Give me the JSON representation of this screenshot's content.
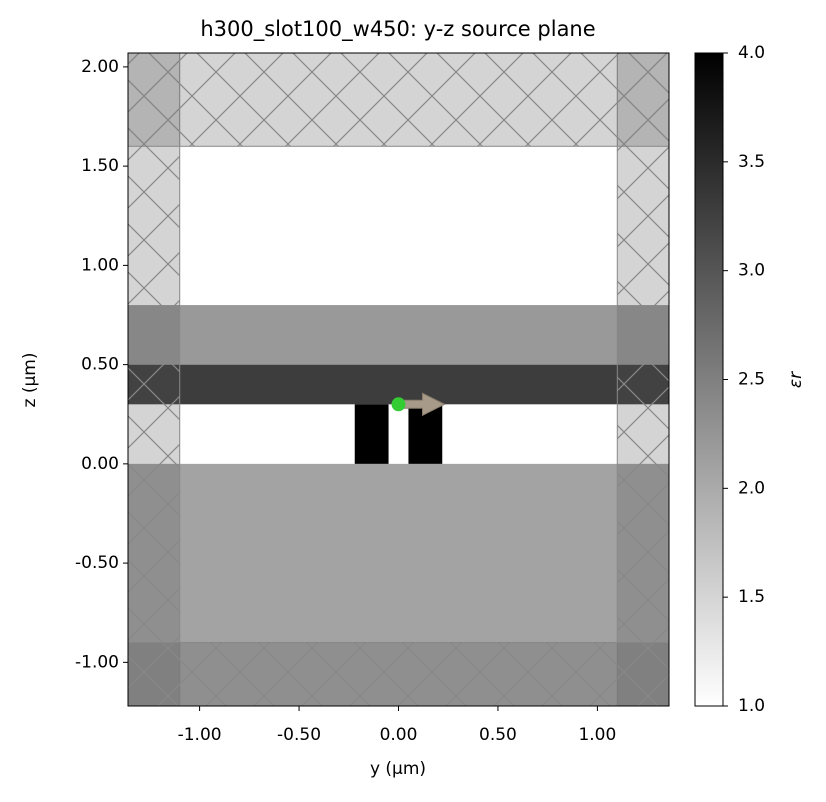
{
  "chart_data": {
    "type": "structure",
    "title": "h300_slot100_w450: y-z source plane",
    "x_label": "y (µm)",
    "y_label": "z (µm)",
    "xlim": [
      -1.36,
      1.36
    ],
    "ylim": [
      -1.22,
      2.07
    ],
    "xticks": [
      {
        "value": -1,
        "label": "-1.00"
      },
      {
        "value": -0.5,
        "label": "-0.50"
      },
      {
        "value": 0,
        "label": "0.00"
      },
      {
        "value": 0.5,
        "label": "0.50"
      },
      {
        "value": 1,
        "label": "1.00"
      }
    ],
    "yticks": [
      {
        "value": -1,
        "label": "-1.00"
      },
      {
        "value": -0.5,
        "label": "-0.50"
      },
      {
        "value": 0,
        "label": "0.00"
      },
      {
        "value": 0.5,
        "label": "0.50"
      },
      {
        "value": 1,
        "label": "1.00"
      },
      {
        "value": 1.5,
        "label": "1.50"
      },
      {
        "value": 2,
        "label": "2.00"
      }
    ],
    "background_eps": 1,
    "regions": [
      {
        "y": [
          -1.36,
          1.36
        ],
        "z": [
          -1.22,
          0
        ],
        "eps": 2.08
      },
      {
        "y": [
          -1.36,
          1.36
        ],
        "z": [
          0.3,
          0.5
        ],
        "eps": 3.28
      },
      {
        "y": [
          -1.36,
          1.36
        ],
        "z": [
          0.5,
          0.8
        ],
        "eps": 2.2
      },
      {
        "y": [
          -0.22,
          -0.05
        ],
        "z": [
          0,
          0.3
        ],
        "eps": 4
      },
      {
        "y": [
          0.05,
          0.22
        ],
        "z": [
          0,
          0.3
        ],
        "eps": 4
      }
    ],
    "simulation_bounds": {
      "y": [
        -1.1,
        1.1
      ],
      "z": [
        -0.9,
        1.6
      ]
    },
    "source": {
      "y": 0,
      "z": 0.3,
      "color": "#33cc33"
    },
    "colorbar_label": "εr",
    "clim": [
      1,
      4
    ],
    "cticks": [
      {
        "value": 1,
        "label": "1.0"
      },
      {
        "value": 1.5,
        "label": "1.5"
      },
      {
        "value": 2,
        "label": "2.0"
      },
      {
        "value": 2.5,
        "label": "2.5"
      },
      {
        "value": 3,
        "label": "3.0"
      },
      {
        "value": 3.5,
        "label": "3.5"
      },
      {
        "value": 4,
        "label": "4.0"
      }
    ]
  }
}
